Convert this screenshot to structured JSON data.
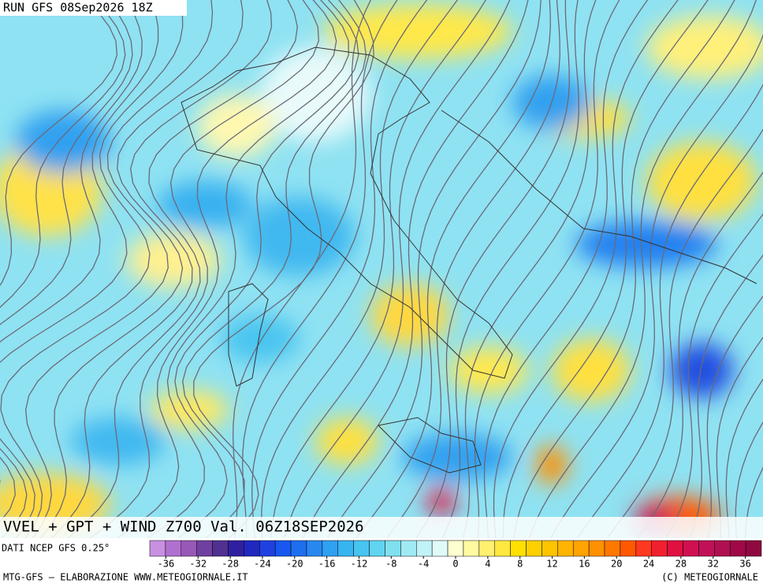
{
  "header": {
    "run": "RUN GFS 08Sep2026 18Z",
    "title": "VVEL + GPT + WIND Z700 Val. 06Z18SEP2026",
    "source": "DATI NCEP GFS 0.25°"
  },
  "colorbar": {
    "range": [
      -38,
      38
    ],
    "ticks": [
      -36,
      -32,
      -28,
      -24,
      -20,
      -16,
      -12,
      -8,
      -4,
      0,
      4,
      8,
      12,
      16,
      20,
      24,
      28,
      32,
      36
    ],
    "colors": [
      "#c890e0",
      "#b070d0",
      "#9858b8",
      "#7040a0",
      "#503090",
      "#3020a0",
      "#2028c0",
      "#2040e0",
      "#1858f0",
      "#1e6ef0",
      "#2888f0",
      "#30a0f0",
      "#38b4f0",
      "#48c4f0",
      "#60d4f0",
      "#80e0f0",
      "#a0eaf4",
      "#c0f2f8",
      "#e0fafa",
      "#ffffd0",
      "#fffaa0",
      "#fff070",
      "#ffe840",
      "#ffe000",
      "#ffd000",
      "#ffc400",
      "#ffb400",
      "#ffa400",
      "#ff9000",
      "#ff7800",
      "#ff5800",
      "#ff3820",
      "#f02030",
      "#e01040",
      "#d01050",
      "#c01058",
      "#b01050",
      "#a00848",
      "#900840"
    ]
  },
  "footer": {
    "left": "MTG-GFS – ELABORAZIONE WWW.METEOGIORNALE.IT",
    "right": "(C) METEOGIORNALE"
  }
}
